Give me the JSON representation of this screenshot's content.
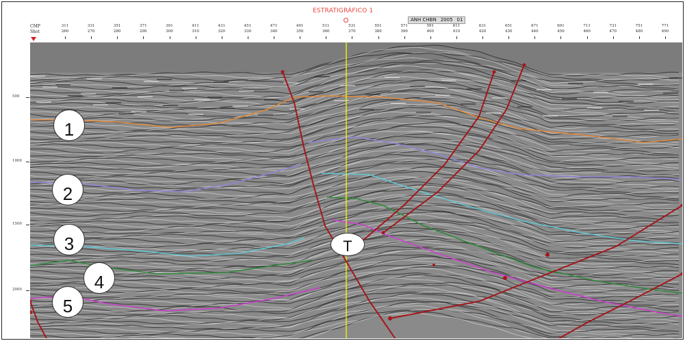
{
  "header": {
    "title": "ESTRATIGRÁFICO 1",
    "line_box": {
      "name": "ANH CHBN",
      "year": "2005",
      "number": "01"
    },
    "row_labels": {
      "cmp": "CMP",
      "shot": "Shot"
    },
    "cmp_values": [
      "311",
      "331",
      "351",
      "371",
      "391",
      "411",
      "431",
      "451",
      "471",
      "491",
      "511",
      "531",
      "551",
      "571",
      "591",
      "611",
      "631",
      "651",
      "671",
      "691",
      "711",
      "731",
      "751",
      "771"
    ],
    "shot_values": [
      "260",
      "270",
      "280",
      "290",
      "300",
      "310",
      "320",
      "330",
      "340",
      "350",
      "360",
      "370",
      "380",
      "390",
      "400",
      "410",
      "420",
      "430",
      "440",
      "450",
      "460",
      "470",
      "480",
      "490"
    ]
  },
  "time_axis": [
    "500",
    "1000",
    "1500",
    "2000"
  ],
  "horizons": [
    {
      "label": "1",
      "color": "#e08a3c"
    },
    {
      "label": "2",
      "color": "#8f86d8"
    },
    {
      "label": "3",
      "color": "#62c6d4"
    },
    {
      "label": "4",
      "color": "#2f8a3a"
    },
    {
      "label": "5",
      "color": "#cc3fcf"
    }
  ],
  "fault_marker": {
    "label": "T"
  },
  "colors": {
    "fault": "#a3171c",
    "well": "#f2f200",
    "title": "#e8413a"
  }
}
